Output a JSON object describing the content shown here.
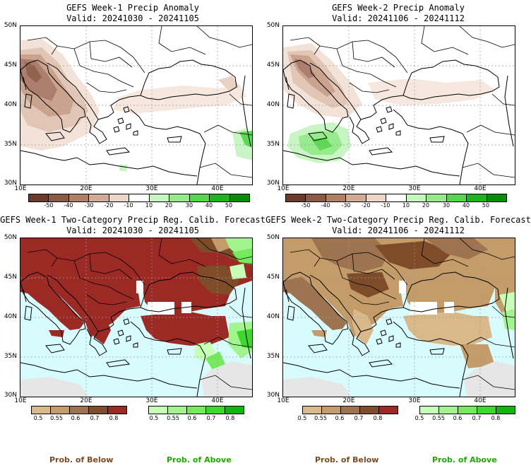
{
  "panels": [
    {
      "title": "GEFS Week-1 Precip Anomaly",
      "valid": "Valid: 20241030 - 20241105",
      "lat_labels": [
        "50N",
        "45N",
        "40N",
        "35N",
        "30N"
      ],
      "lon_labels": [
        "10E",
        "20E",
        "30E",
        "40E"
      ],
      "legend_type": "anomaly"
    },
    {
      "title": "GEFS Week-2 Precip Anomaly",
      "valid": "Valid: 20241106 - 20241112",
      "lat_labels": [
        "50N",
        "45N",
        "40N",
        "35N",
        "30N"
      ],
      "lon_labels": [
        "10E",
        "20E",
        "30E",
        "40E"
      ],
      "legend_type": "anomaly"
    },
    {
      "title": "GEFS Week-1 Two-Category Precip Reg. Calib. Forecast",
      "valid": "Valid: 20241030 - 20241105",
      "lat_labels": [
        "50N",
        "45N",
        "40N",
        "35N",
        "30N"
      ],
      "lon_labels": [
        "10E",
        "20E",
        "30E",
        "40E"
      ],
      "legend_type": "probability"
    },
    {
      "title": "GEFS Week-2 Two-Category Precip Reg. Calib. Forecast",
      "valid": "Valid: 20241106 - 20241112",
      "lat_labels": [
        "50N",
        "45N",
        "40N",
        "35N",
        "30N"
      ],
      "lon_labels": [
        "10E",
        "20E",
        "30E",
        "40E"
      ],
      "legend_type": "probability"
    }
  ],
  "anomaly_legend": {
    "labels": [
      "-50",
      "-40",
      "-30",
      "-20",
      "-10",
      "10",
      "20",
      "30",
      "40",
      "50"
    ],
    "colors": [
      "#6b3a2a",
      "#8c5a44",
      "#b07f66",
      "#d1ab96",
      "#ecd4c6",
      "#ffffff",
      "#c6f5c0",
      "#93ea86",
      "#55d84b",
      "#1fb51a",
      "#078d06"
    ]
  },
  "below_legend": {
    "labels": [
      "0.5",
      "0.55",
      "0.6",
      "0.7",
      "0.8"
    ],
    "colors": [
      "#d9b98a",
      "#c49c6a",
      "#9d7350",
      "#7f4c2a",
      "#9c2a24"
    ]
  },
  "above_legend": {
    "labels": [
      "0.5",
      "0.55",
      "0.6",
      "0.7",
      "0.8"
    ],
    "colors": [
      "#c8ffb8",
      "#a2f58e",
      "#74ea5c",
      "#3dd82d",
      "#11b50d"
    ]
  },
  "footer": {
    "below_label": "Prob. of Below",
    "above_label": "Prob. of Above",
    "below_color": "#7a4a22",
    "above_color": "#1fa800"
  },
  "colors": {
    "sea_prob": "#d8fbfd",
    "no_data": "#e6e6e6"
  }
}
